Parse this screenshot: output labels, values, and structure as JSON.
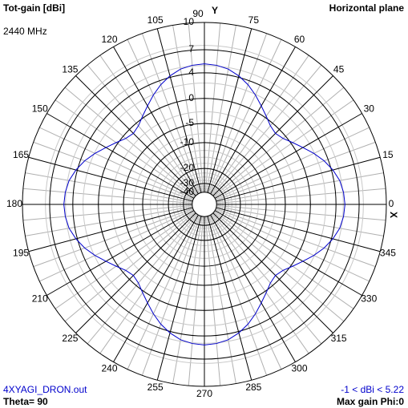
{
  "chart_data": {
    "type": "polar",
    "title": "Tot-gain [dBi]",
    "subtitle": "Horizontal plane",
    "frequency": "2440 MHz",
    "file_name": "4XYAGI_DRON.out",
    "theta_label": "Theta= 90",
    "range_label": "-1 < dBi < 5.22",
    "max_gain_label": "Max gain Phi:0",
    "x_axis_label": "X",
    "y_axis_label": "Y",
    "color": "#0000cc",
    "log_scale": true,
    "rlim": [
      -40,
      10
    ],
    "rticks": [
      10,
      7,
      4,
      0,
      -5,
      -10,
      -20,
      -30,
      -40
    ],
    "angle_ticks": [
      0,
      15,
      30,
      45,
      60,
      75,
      90,
      105,
      120,
      135,
      150,
      165,
      180,
      195,
      210,
      225,
      240,
      255,
      270,
      285,
      300,
      315,
      330,
      345
    ],
    "angles": [
      0,
      5,
      10,
      15,
      20,
      25,
      30,
      35,
      40,
      45,
      50,
      55,
      60,
      65,
      70,
      75,
      80,
      85,
      90,
      95,
      100,
      105,
      110,
      115,
      120,
      125,
      130,
      135,
      140,
      145,
      150,
      155,
      160,
      165,
      170,
      175,
      180,
      185,
      190,
      195,
      200,
      205,
      210,
      215,
      220,
      225,
      230,
      235,
      240,
      245,
      250,
      255,
      260,
      265,
      270,
      275,
      280,
      285,
      290,
      295,
      300,
      305,
      310,
      315,
      320,
      325,
      330,
      335,
      340,
      345,
      350,
      355
    ],
    "values": [
      5.22,
      5.1,
      4.8,
      4.2,
      3.4,
      2.4,
      1.3,
      0.3,
      -0.6,
      -1.0,
      -0.6,
      0.3,
      1.3,
      2.4,
      3.4,
      4.2,
      4.8,
      5.1,
      5.22,
      5.1,
      4.8,
      4.2,
      3.4,
      2.4,
      1.3,
      0.3,
      -0.6,
      -1.0,
      -0.6,
      0.3,
      1.3,
      2.4,
      3.4,
      4.2,
      4.8,
      5.1,
      5.22,
      5.1,
      4.8,
      4.2,
      3.4,
      2.4,
      1.3,
      0.3,
      -0.6,
      -1.0,
      -0.6,
      0.3,
      1.3,
      2.4,
      3.4,
      4.2,
      4.8,
      5.1,
      5.22,
      5.1,
      4.8,
      4.2,
      3.4,
      2.4,
      1.3,
      0.3,
      -0.6,
      -1.0,
      -0.6,
      0.3,
      1.3,
      2.4,
      3.4,
      4.2,
      4.8,
      5.1
    ]
  }
}
